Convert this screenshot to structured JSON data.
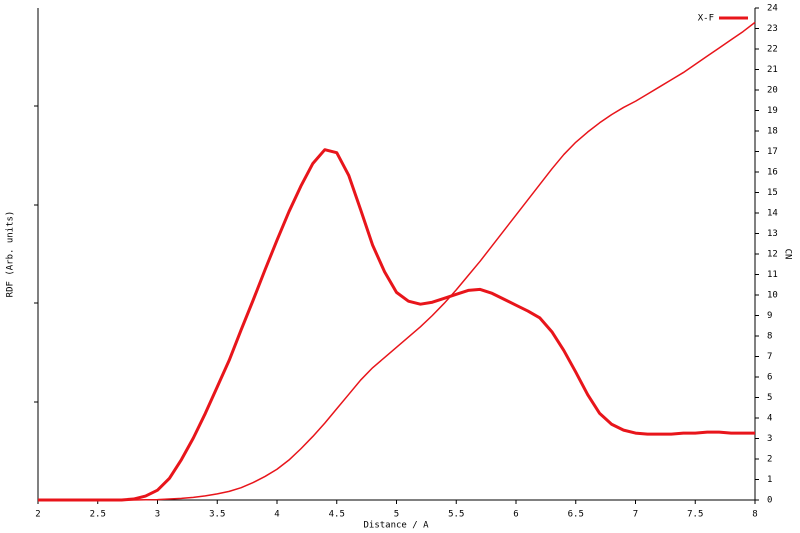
{
  "chart_data": {
    "type": "line",
    "xlabel": "Distance / A",
    "ylabel": "RDF (Arb. units)",
    "y2label": "CN",
    "x": [
      2,
      2.1,
      2.2,
      2.3,
      2.4,
      2.5,
      2.6,
      2.7,
      2.8,
      2.9,
      3,
      3.1,
      3.2,
      3.3,
      3.4,
      3.5,
      3.6,
      3.7,
      3.8,
      3.9,
      4,
      4.1,
      4.2,
      4.3,
      4.4,
      4.5,
      4.6,
      4.7,
      4.8,
      4.9,
      5,
      5.1,
      5.2,
      5.3,
      5.4,
      5.5,
      5.6,
      5.7,
      5.8,
      5.9,
      6,
      6.1,
      6.2,
      6.3,
      6.4,
      6.5,
      6.6,
      6.7,
      6.8,
      6.9,
      7,
      7.1,
      7.2,
      7.3,
      7.4,
      7.5,
      7.6,
      7.7,
      7.8,
      7.9,
      8
    ],
    "series": [
      {
        "name": "X-F",
        "color": "#e8151b",
        "linewidth": 3,
        "values": [
          0,
          0,
          0,
          0,
          0,
          0,
          0,
          0,
          0.01,
          0.04,
          0.1,
          0.22,
          0.41,
          0.63,
          0.88,
          1.15,
          1.42,
          1.73,
          2.03,
          2.34,
          2.64,
          2.93,
          3.19,
          3.42,
          3.56,
          3.53,
          3.3,
          2.95,
          2.59,
          2.32,
          2.11,
          2.02,
          1.99,
          2.01,
          2.05,
          2.09,
          2.13,
          2.14,
          2.1,
          2.04,
          1.98,
          1.92,
          1.85,
          1.71,
          1.52,
          1.3,
          1.07,
          0.88,
          0.77,
          0.71,
          0.68,
          0.67,
          0.67,
          0.67,
          0.68,
          0.68,
          0.69,
          0.69,
          0.68,
          0.68,
          0.68
        ]
      },
      {
        "color": "#e8151b",
        "linewidth": 1.5,
        "axis": "y2",
        "values": [
          0,
          0,
          0,
          0,
          0,
          0,
          0,
          0,
          0,
          0.01,
          0.02,
          0.05,
          0.08,
          0.13,
          0.2,
          0.3,
          0.42,
          0.6,
          0.85,
          1.15,
          1.5,
          1.95,
          2.5,
          3.1,
          3.75,
          4.45,
          5.15,
          5.85,
          6.45,
          6.95,
          7.45,
          7.95,
          8.45,
          9,
          9.6,
          10.25,
          10.95,
          11.65,
          12.4,
          13.15,
          13.9,
          14.65,
          15.4,
          16.15,
          16.85,
          17.45,
          17.95,
          18.4,
          18.8,
          19.15,
          19.45,
          19.8,
          20.15,
          20.5,
          20.85,
          21.25,
          21.65,
          22.05,
          22.45,
          22.85,
          23.3
        ]
      }
    ],
    "xlim": [
      2,
      8
    ],
    "xticks": [
      2,
      2.5,
      3,
      3.5,
      4,
      4.5,
      5,
      5.5,
      6,
      6.5,
      7,
      7.5,
      8
    ],
    "ylim": [
      0,
      5
    ],
    "y2lim": [
      0,
      24
    ],
    "y2ticks": [
      0,
      1,
      2,
      3,
      4,
      5,
      6,
      7,
      8,
      9,
      10,
      11,
      12,
      13,
      14,
      15,
      16,
      17,
      18,
      19,
      20,
      21,
      22,
      23,
      24
    ],
    "legend": "upper right"
  }
}
